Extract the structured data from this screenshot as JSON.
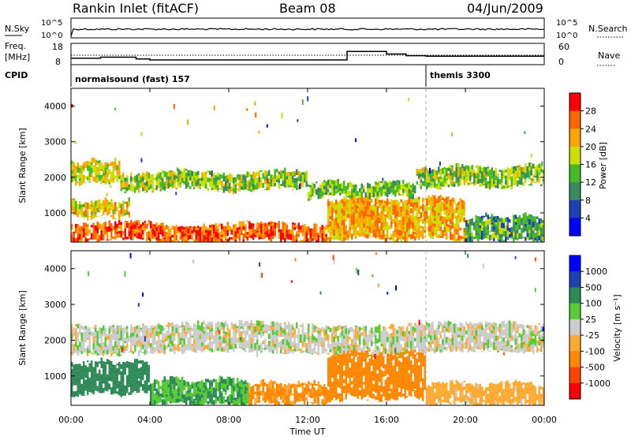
{
  "header": {
    "station": "Rankin Inlet (fitACF)",
    "beam": "Beam 08",
    "date": "04/Jun/2009"
  },
  "nsky_panel": {
    "left_label": "N.Sky",
    "left_ticks": [
      "10^5",
      "10^0"
    ],
    "right_ticks": [
      "10^5",
      "10^0"
    ],
    "right_label": "N.Search"
  },
  "freq_panel": {
    "left_label_line1": "Freq.",
    "left_label_line2": "[MHz]",
    "left_ticks": [
      "18",
      "8"
    ],
    "right_ticks": [
      "60",
      "0"
    ],
    "right_label": "Nave",
    "freq_steps": [
      {
        "t": 0.0,
        "f": 11.0
      },
      {
        "t": 1.5,
        "f": 11.5
      },
      {
        "t": 3.3,
        "f": 10.7
      },
      {
        "t": 4.0,
        "f": 10.2
      },
      {
        "t": 8.0,
        "f": 10.2
      },
      {
        "t": 12.0,
        "f": 10.2
      },
      {
        "t": 14.0,
        "f": 14.2
      },
      {
        "t": 16.0,
        "f": 13.0
      },
      {
        "t": 17.0,
        "f": 12.2
      },
      {
        "t": 18.0,
        "f": 12.0
      },
      {
        "t": 24.0,
        "f": 12.0
      }
    ]
  },
  "cpid": {
    "label": "CPID",
    "segments": [
      {
        "text": "normalsound (fast) 157",
        "start_hour": 0
      },
      {
        "text": "themis 3300",
        "start_hour": 18
      }
    ]
  },
  "x_axis": {
    "label": "Time UT",
    "ticks": [
      "00:00",
      "04:00",
      "08:00",
      "12:00",
      "16:00",
      "20:00",
      "00:00"
    ]
  },
  "colors": {
    "power": [
      "#0000ff",
      "#1e40b0",
      "#3a8c5c",
      "#44bb22",
      "#ccdd00",
      "#ffa500",
      "#ff6600",
      "#ff0000"
    ],
    "velocity": [
      "#ff0000",
      "#ff4400",
      "#ff8800",
      "#ffaa33",
      "#cccccc",
      "#55cc33",
      "#2e8b57",
      "#1e40b0",
      "#0000ff"
    ]
  },
  "chart_data": [
    {
      "type": "heatmap",
      "quantity": "power",
      "ylabel": "Slant Range [km]",
      "xlim": [
        0,
        24
      ],
      "ylim": [
        180,
        4500
      ],
      "y_ticks": [
        1000,
        2000,
        3000,
        4000
      ],
      "colorbar_label": "Power [dB]",
      "colorbar_ticks": [
        "28",
        "24",
        "20",
        "16",
        "12",
        "8",
        "4"
      ],
      "colorbar_range": [
        0,
        32
      ],
      "bands": [
        {
          "t0": 0.0,
          "t1": 2.5,
          "r0": 1850,
          "r1": 2450,
          "power": 18
        },
        {
          "t0": 2.5,
          "t1": 12.0,
          "r0": 1650,
          "r1": 2150,
          "power": 16
        },
        {
          "t0": 12.0,
          "t1": 17.5,
          "r0": 1450,
          "r1": 1850,
          "power": 14
        },
        {
          "t0": 17.5,
          "t1": 24.0,
          "r0": 1750,
          "r1": 2300,
          "power": 15
        },
        {
          "t0": 0.0,
          "t1": 3.0,
          "r0": 900,
          "r1": 1350,
          "power": 20
        },
        {
          "t0": 0.0,
          "t1": 13.0,
          "r0": 200,
          "r1": 700,
          "power": 26
        },
        {
          "t0": 13.0,
          "t1": 20.0,
          "r0": 250,
          "r1": 1400,
          "power": 22
        },
        {
          "t0": 20.0,
          "t1": 24.0,
          "r0": 200,
          "r1": 900,
          "power": 12
        }
      ]
    },
    {
      "type": "heatmap",
      "quantity": "velocity",
      "ylabel": "Slant Range [km]",
      "xlim": [
        0,
        24
      ],
      "ylim": [
        180,
        4500
      ],
      "y_ticks": [
        1000,
        2000,
        3000,
        4000
      ],
      "colorbar_label": "Velocity [m s⁻¹]",
      "colorbar_ticks": [
        "1000",
        "500",
        "100",
        "25",
        "-25",
        "-100",
        "-500",
        "-1000"
      ],
      "bands": [
        {
          "t0": 0.0,
          "t1": 24.0,
          "r0": 1650,
          "r1": 2450,
          "velocity": 0
        },
        {
          "t0": 0.0,
          "t1": 4.0,
          "r0": 500,
          "r1": 1400,
          "velocity": 150
        },
        {
          "t0": 4.0,
          "t1": 9.0,
          "r0": 200,
          "r1": 900,
          "velocity": 100
        },
        {
          "t0": 9.0,
          "t1": 13.0,
          "r0": 200,
          "r1": 800,
          "velocity": -120
        },
        {
          "t0": 13.0,
          "t1": 18.0,
          "r0": 350,
          "r1": 1650,
          "velocity": -250
        },
        {
          "t0": 18.0,
          "t1": 24.0,
          "r0": 200,
          "r1": 800,
          "velocity": -60
        }
      ]
    }
  ]
}
